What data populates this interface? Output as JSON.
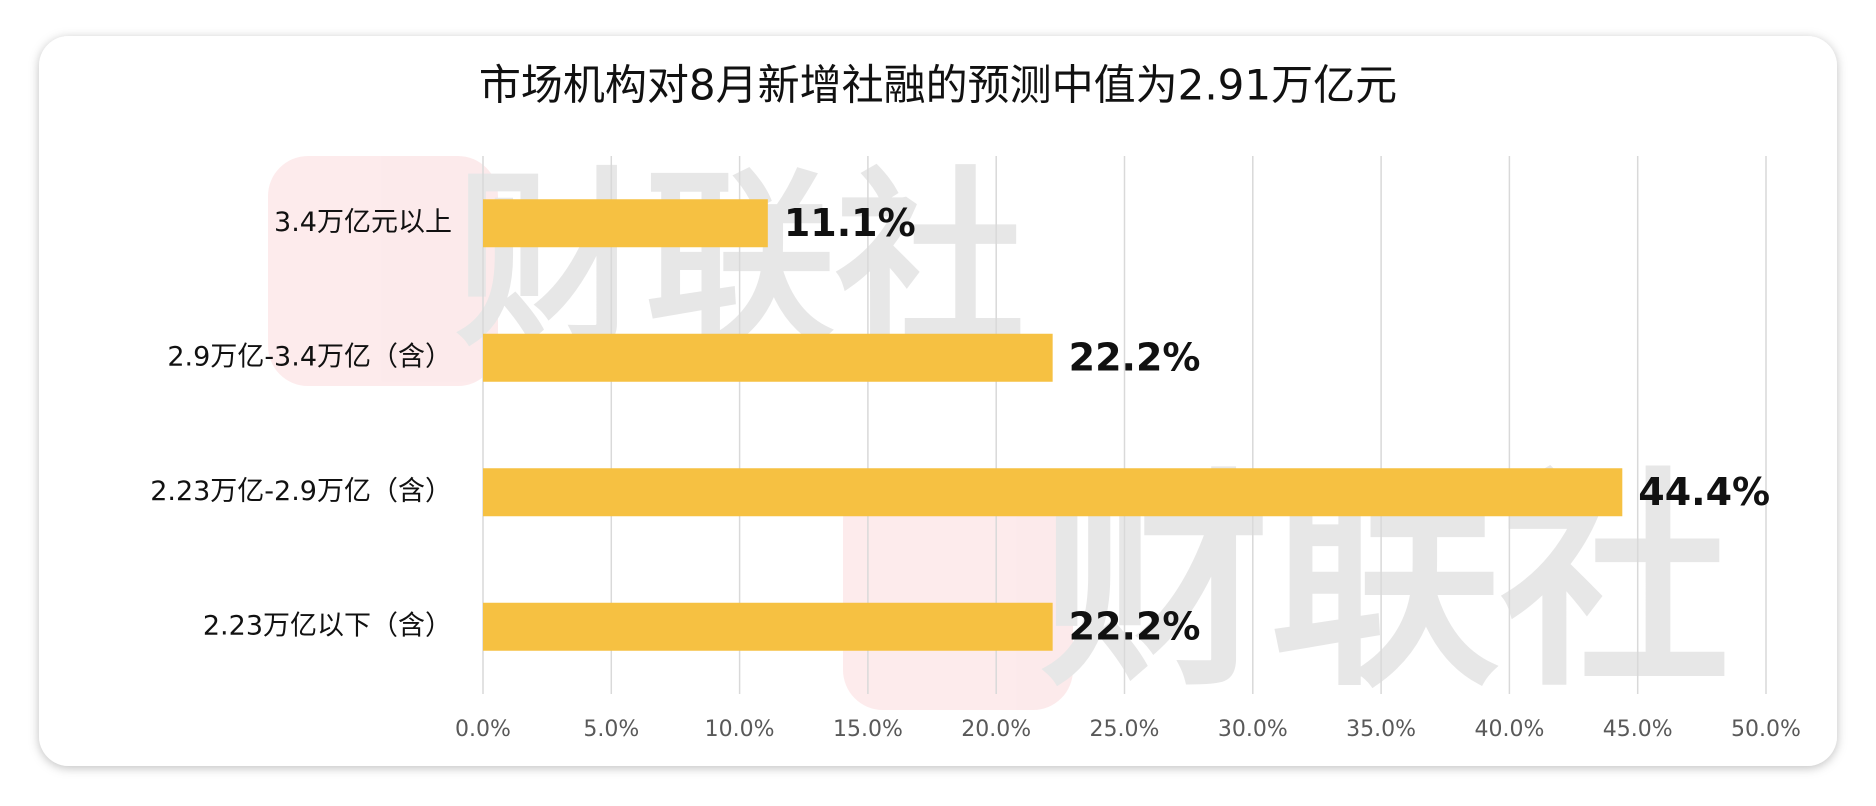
{
  "chart_data": {
    "type": "bar",
    "orientation": "horizontal",
    "title": "市场机构对8月新增社融的预测中值为2.91万亿元",
    "watermark": "财联社",
    "categories": [
      "3.4万亿元以上",
      "2.9万亿-3.4万亿（含）",
      "2.23万亿-2.9万亿（含）",
      "2.23万亿以下（含）"
    ],
    "values": [
      11.1,
      22.2,
      44.4,
      22.2
    ],
    "value_labels": [
      "11.1%",
      "22.2%",
      "44.4%",
      "22.2%"
    ],
    "color": "#f6c142",
    "xlim": [
      0,
      50
    ],
    "xticks": [
      {
        "value": 0,
        "label": "0.0%"
      },
      {
        "value": 5,
        "label": "5.0%"
      },
      {
        "value": 10,
        "label": "10.0%"
      },
      {
        "value": 15,
        "label": "15.0%"
      },
      {
        "value": 20,
        "label": "20.0%"
      },
      {
        "value": 25,
        "label": "25.0%"
      },
      {
        "value": 30,
        "label": "30.0%"
      },
      {
        "value": 35,
        "label": "35.0%"
      },
      {
        "value": 40,
        "label": "40.0%"
      },
      {
        "value": 45,
        "label": "45.0%"
      },
      {
        "value": 50,
        "label": "50.0%"
      }
    ],
    "grid": true
  }
}
